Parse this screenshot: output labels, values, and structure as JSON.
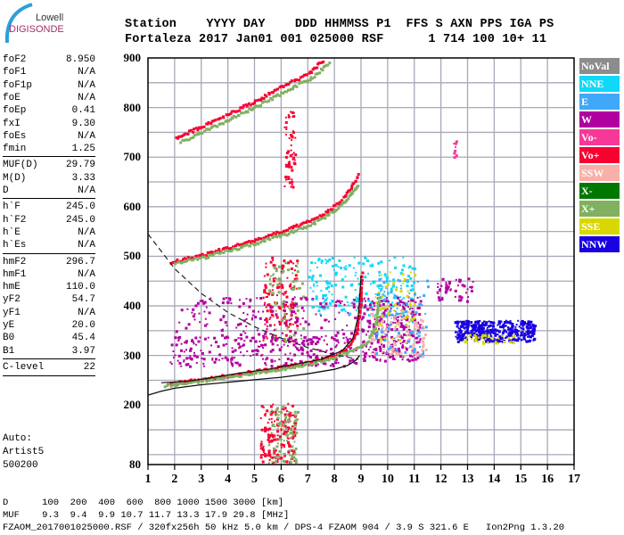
{
  "logo": {
    "line1": "Lowell",
    "line2": "DIGISONDE"
  },
  "header": {
    "labels": "Station    YYYY DAY    DDD HHMMSS P1  FFS S AXN PPS IGA PS",
    "values": "Fortaleza 2017 Jan01 001 025000 RSF      1 714 100 10+ 11"
  },
  "params": [
    {
      "k": "foF2",
      "v": "8.950"
    },
    {
      "k": "foF1",
      "v": "N/A"
    },
    {
      "k": "foF1p",
      "v": "N/A"
    },
    {
      "k": "foE",
      "v": "N/A"
    },
    {
      "k": "foEp",
      "v": "0.41"
    },
    {
      "k": "fxI",
      "v": "9.30"
    },
    {
      "k": "foEs",
      "v": "N/A"
    },
    {
      "k": "fmin",
      "v": "1.25"
    },
    {
      "k": "MUF(D)",
      "v": "29.79"
    },
    {
      "k": "M(D)",
      "v": "3.33"
    },
    {
      "k": "D",
      "v": "N/A"
    },
    {
      "k": "h`F",
      "v": "245.0"
    },
    {
      "k": "h`F2",
      "v": "245.0"
    },
    {
      "k": "h`E",
      "v": "N/A"
    },
    {
      "k": "h`Es",
      "v": "N/A"
    },
    {
      "k": "hmF2",
      "v": "296.7"
    },
    {
      "k": "hmF1",
      "v": "N/A"
    },
    {
      "k": "hmE",
      "v": "110.0"
    },
    {
      "k": "yF2",
      "v": "54.7"
    },
    {
      "k": "yF1",
      "v": "N/A"
    },
    {
      "k": "yE",
      "v": "20.0"
    },
    {
      "k": "B0",
      "v": "45.4"
    },
    {
      "k": "B1",
      "v": "3.97"
    },
    {
      "k": "C-level",
      "v": "22"
    }
  ],
  "auto": {
    "l1": "Auto:",
    "l2": "Artist5",
    "l3": "500200"
  },
  "legend": [
    {
      "label": "NoVal",
      "color": "#8c8c8c"
    },
    {
      "label": "NNE",
      "color": "#10d8f8"
    },
    {
      "label": "E",
      "color": "#40a8f8"
    },
    {
      "label": "W",
      "color": "#b000a0"
    },
    {
      "label": "Vo-",
      "color": "#f83898"
    },
    {
      "label": "Vo+",
      "color": "#f80030"
    },
    {
      "label": "SSW",
      "color": "#f8b0a8"
    },
    {
      "label": "X-",
      "color": "#007800"
    },
    {
      "label": "X+",
      "color": "#80b060"
    },
    {
      "label": "SSE",
      "color": "#d8d800"
    },
    {
      "label": "NNW",
      "color": "#1800e0"
    }
  ],
  "footer": {
    "d_row": "D      100  200  400  600  800 1000 1500 3000 [km]",
    "muf_row": "MUF    9.3  9.4  9.9 10.7 11.7 13.3 17.9 29.8 [MHz]",
    "info": "FZAOM_2017001025000.RSF / 320fx256h 50 kHz 5.0 km / DPS-4 FZAOM 904 / 3.9 S 321.6 E   Ion2Png 1.3.20"
  },
  "chart_data": {
    "type": "scatter",
    "xlim": [
      1,
      17
    ],
    "ylim": [
      80,
      900
    ],
    "xticks": [
      "1",
      "2",
      "3",
      "4",
      "5",
      "6",
      "7",
      "8",
      "9",
      "10",
      "11",
      "12",
      "13",
      "14",
      "15",
      "16",
      "17"
    ],
    "yticks": [
      "900",
      "800",
      "700",
      "600",
      "500",
      "400",
      "300",
      "200",
      "80"
    ],
    "grid": true,
    "legend_position": "right",
    "traces": [
      {
        "name": "F2 O-trace",
        "color_key": "Vo+",
        "points": [
          [
            1.8,
            245
          ],
          [
            2.5,
            250
          ],
          [
            3,
            255
          ],
          [
            4,
            262
          ],
          [
            5,
            270
          ],
          [
            6,
            279
          ],
          [
            7,
            288
          ],
          [
            8,
            303
          ],
          [
            8.5,
            320
          ],
          [
            8.8,
            350
          ],
          [
            8.95,
            410
          ],
          [
            9.0,
            470
          ]
        ]
      },
      {
        "name": "F2 X-trace",
        "color_key": "X+",
        "points": [
          [
            1.6,
            242
          ],
          [
            2.6,
            248
          ],
          [
            3.6,
            257
          ],
          [
            4.6,
            264
          ],
          [
            5.6,
            272
          ],
          [
            6.6,
            281
          ],
          [
            7.6,
            293
          ],
          [
            8.6,
            310
          ],
          [
            9.2,
            330
          ],
          [
            9.5,
            360
          ],
          [
            9.65,
            420
          ]
        ]
      },
      {
        "name": "2F O-trace",
        "color_key": "Vo+",
        "points": [
          [
            1.8,
            490
          ],
          [
            3,
            505
          ],
          [
            4,
            520
          ],
          [
            5,
            535
          ],
          [
            6,
            552
          ],
          [
            7,
            572
          ],
          [
            7.8,
            595
          ],
          [
            8.3,
            620
          ],
          [
            8.7,
            650
          ],
          [
            8.9,
            670
          ]
        ]
      },
      {
        "name": "2F X-trace",
        "color_key": "X+",
        "points": [
          [
            2,
            488
          ],
          [
            3.2,
            502
          ],
          [
            4.3,
            518
          ],
          [
            5.3,
            533
          ],
          [
            6.3,
            550
          ],
          [
            7.3,
            572
          ],
          [
            8.1,
            600
          ],
          [
            8.6,
            628
          ],
          [
            8.9,
            650
          ]
        ]
      },
      {
        "name": "3F O-trace",
        "color_key": "Vo+",
        "points": [
          [
            2,
            740
          ],
          [
            3,
            765
          ],
          [
            4,
            790
          ],
          [
            5,
            815
          ],
          [
            6,
            845
          ],
          [
            7,
            870
          ],
          [
            7.6,
            900
          ]
        ]
      },
      {
        "name": "3F X-trace",
        "color_key": "X+",
        "points": [
          [
            2.2,
            732
          ],
          [
            3.2,
            757
          ],
          [
            4.2,
            783
          ],
          [
            5.2,
            808
          ],
          [
            6.2,
            838
          ],
          [
            7.2,
            865
          ],
          [
            7.8,
            895
          ]
        ]
      }
    ],
    "clouds": [
      {
        "name": "low-height spread",
        "color_key": "Vo+",
        "f": [
          5.2,
          6.5
        ],
        "h": [
          85,
          205
        ],
        "n": 170
      },
      {
        "name": "low-height spread X",
        "color_key": "X+",
        "f": [
          5.5,
          6.6
        ],
        "h": [
          85,
          200
        ],
        "n": 90
      },
      {
        "name": "oblique spread",
        "color_key": "Vo+",
        "f": [
          5.3,
          6.6
        ],
        "h": [
          330,
          500
        ],
        "n": 140
      },
      {
        "name": "oblique spread X",
        "color_key": "X+",
        "f": [
          5.5,
          6.8
        ],
        "h": [
          330,
          490
        ],
        "n": 80
      },
      {
        "name": "upper streak",
        "color_key": "Vo+",
        "f": [
          6.1,
          6.5
        ],
        "h": [
          640,
          800
        ],
        "n": 60
      },
      {
        "name": "W echoes low",
        "color_key": "W",
        "f": [
          1.8,
          8.8
        ],
        "h": [
          280,
          340
        ],
        "n": 260
      },
      {
        "name": "W echoes mid",
        "color_key": "W",
        "f": [
          2,
          9
        ],
        "h": [
          330,
          420
        ],
        "n": 180
      },
      {
        "name": "NNE cluster",
        "color_key": "NNE",
        "f": [
          7,
          11
        ],
        "h": [
          380,
          500
        ],
        "n": 220
      },
      {
        "name": "spread F west",
        "color_key": "W",
        "f": [
          9,
          11.2
        ],
        "h": [
          290,
          420
        ],
        "n": 260
      },
      {
        "name": "spread F SSW",
        "color_key": "SSW",
        "f": [
          9.3,
          11.4
        ],
        "h": [
          300,
          400
        ],
        "n": 120
      },
      {
        "name": "spread F E",
        "color_key": "E",
        "f": [
          9.5,
          11.5
        ],
        "h": [
          300,
          460
        ],
        "n": 90
      },
      {
        "name": "spread F SSE",
        "color_key": "SSE",
        "f": [
          9.5,
          11
        ],
        "h": [
          330,
          480
        ],
        "n": 50
      },
      {
        "name": "spread F W far",
        "color_key": "W",
        "f": [
          11.8,
          13.2
        ],
        "h": [
          410,
          460
        ],
        "n": 50
      },
      {
        "name": "spread F NNW",
        "color_key": "NNW",
        "f": [
          12.5,
          15.5
        ],
        "h": [
          330,
          372
        ],
        "n": 420
      },
      {
        "name": "spread F NNW SSE",
        "color_key": "SSE",
        "f": [
          12.8,
          14.8
        ],
        "h": [
          325,
          345
        ],
        "n": 40
      },
      {
        "name": "spike 12.5MHz",
        "color_key": "Vo-",
        "f": [
          12.45,
          12.55
        ],
        "h": [
          700,
          735
        ],
        "n": 8
      }
    ],
    "profile_curve": {
      "name": "model profile",
      "points": [
        [
          1,
          220
        ],
        [
          1.5,
          228
        ],
        [
          2,
          234
        ],
        [
          3,
          241
        ],
        [
          4,
          246
        ],
        [
          5,
          251
        ],
        [
          6,
          256
        ],
        [
          7,
          263
        ],
        [
          8,
          272
        ],
        [
          8.5,
          280
        ],
        [
          8.8,
          290
        ],
        [
          8.95,
          300
        ]
      ]
    },
    "fit_curve": {
      "name": "fitted trace",
      "points": [
        [
          1.5,
          245
        ],
        [
          2.5,
          248
        ],
        [
          3.5,
          256
        ],
        [
          4.5,
          265
        ],
        [
          5.5,
          272
        ],
        [
          6.5,
          282
        ],
        [
          7.5,
          292
        ],
        [
          8.3,
          310
        ],
        [
          8.7,
          335
        ],
        [
          8.9,
          380
        ],
        [
          9.0,
          460
        ]
      ]
    },
    "muf_curve": {
      "name": "MUF dashed",
      "points": [
        [
          1,
          545
        ],
        [
          2,
          475
        ],
        [
          3,
          425
        ],
        [
          4,
          387
        ],
        [
          5,
          358
        ],
        [
          6,
          335
        ],
        [
          7,
          316
        ],
        [
          8,
          302
        ],
        [
          8.9,
          292
        ]
      ]
    }
  }
}
